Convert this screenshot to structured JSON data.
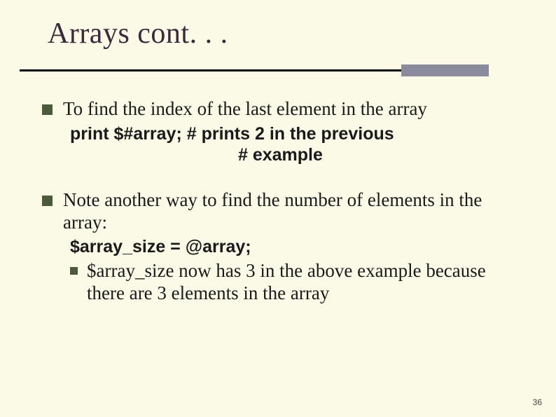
{
  "slide": {
    "title": "Arrays cont. . .",
    "page_number": "36"
  },
  "colors": {
    "background": "#fbfae6",
    "title": "#3b2a3b",
    "bullet": "#4a5a3a",
    "rule_block": "#8b8ba0",
    "rule_line": "#000000"
  },
  "points": {
    "p1": {
      "text": "To find the index of the last element in the array",
      "code_line1": "print $#array;  #  prints 2 in the previous",
      "code_line2": "#  example"
    },
    "p2": {
      "text": "Note another way to find the number of elements in the array:",
      "code": "$array_size = @array;",
      "sub": "$array_size now has 3 in the above example because there are 3 elements in the array"
    }
  }
}
